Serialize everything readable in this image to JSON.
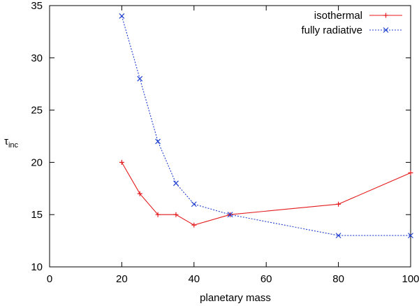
{
  "chart_data": {
    "type": "line",
    "xlabel": "planetary mass",
    "ylabel": {
      "main": "τ",
      "sub": "inc"
    },
    "xlim": [
      0,
      100
    ],
    "ylim": [
      10,
      35
    ],
    "xticks": [
      0,
      20,
      40,
      60,
      80,
      100
    ],
    "yticks": [
      10,
      15,
      20,
      25,
      30,
      35
    ],
    "grid": false,
    "legend_position": "top-right",
    "series": [
      {
        "name": "isothermal",
        "color": "#e41a1c",
        "line_style": "solid",
        "marker": "plus",
        "x": [
          20,
          25,
          30,
          35,
          40,
          50,
          80,
          100
        ],
        "y": [
          20,
          17,
          15,
          15,
          14,
          15,
          16,
          19
        ]
      },
      {
        "name": "fully radiative",
        "color": "#1f3fd0",
        "line_style": "dotted",
        "marker": "cross",
        "x": [
          20,
          25,
          30,
          35,
          40,
          50,
          80,
          100
        ],
        "y": [
          34,
          28,
          22,
          18,
          16,
          15,
          13,
          13
        ]
      }
    ]
  }
}
